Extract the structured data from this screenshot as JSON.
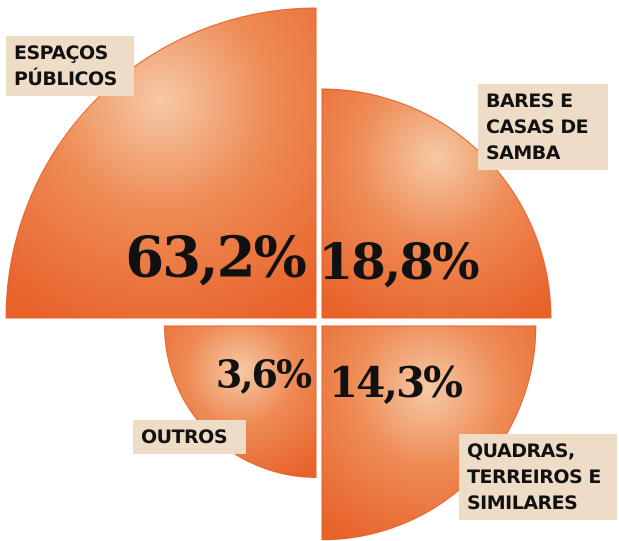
{
  "chart_data": {
    "type": "polar-area",
    "categories": [
      "ESPAÇOS PÚBLICOS",
      "BARES E CASAS DE SAMBA",
      "OUTROS",
      "QUADRAS, TERREIROS E SIMILARES"
    ],
    "values": [
      63.2,
      18.8,
      3.6,
      14.3
    ],
    "value_labels": [
      "63,2%",
      "18,8%",
      "3,6%",
      "14,3%"
    ],
    "color": "#e8622a"
  }
}
